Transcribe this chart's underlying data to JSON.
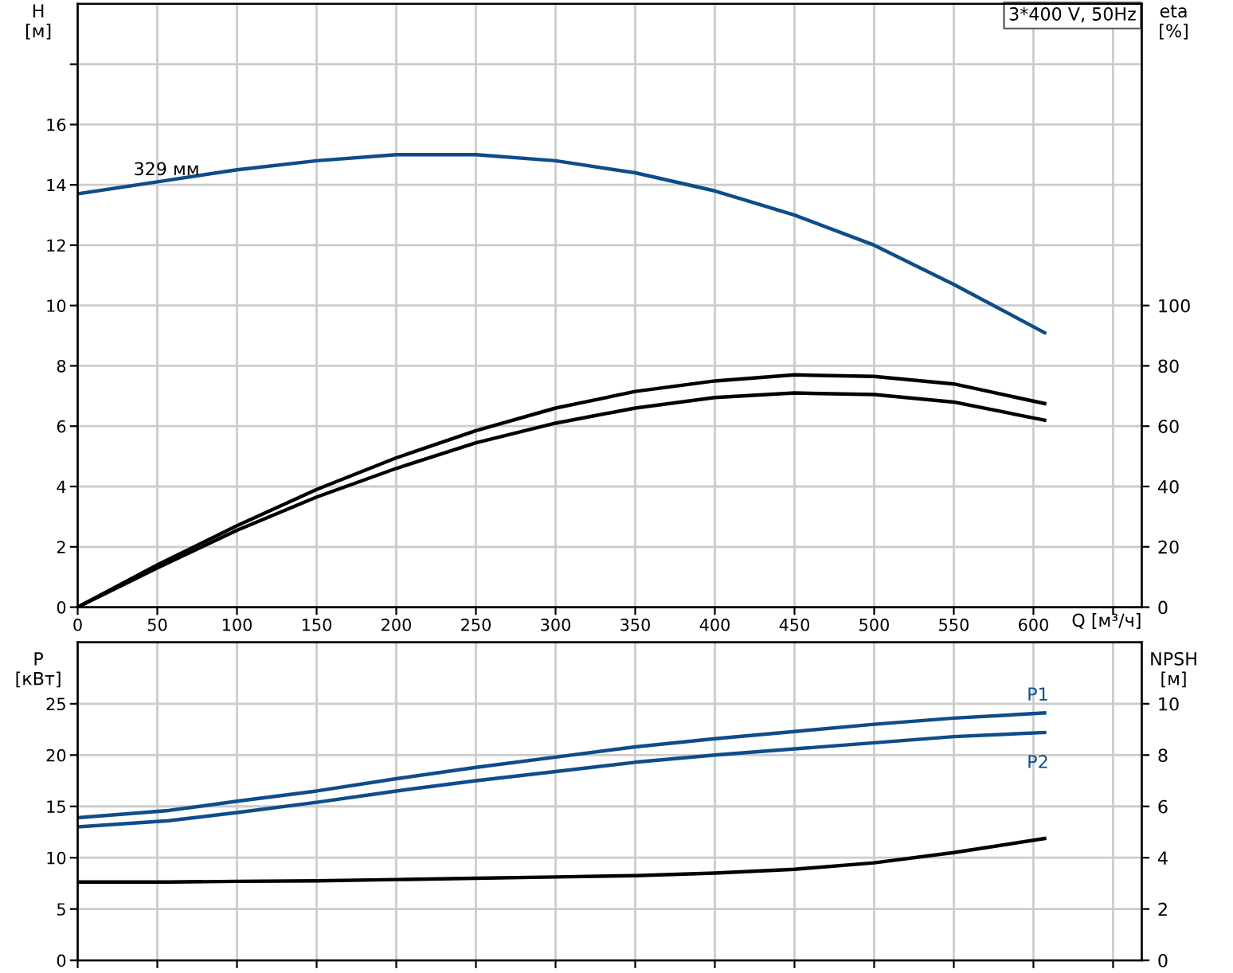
{
  "chart_data": [
    {
      "type": "line",
      "title": "3*400 V, 50Hz",
      "xlabel": "Q [м³/ч]",
      "ylabel": "H\n[м]",
      "y2label": "eta\n[%]",
      "x": [
        0,
        50,
        100,
        150,
        200,
        250,
        300,
        350,
        400,
        450,
        500,
        550,
        607
      ],
      "xlim": [
        0,
        668
      ],
      "xticks": [
        0,
        50,
        100,
        150,
        200,
        250,
        300,
        350,
        400,
        450,
        500,
        550,
        600,
        {
          "value": 650,
          "label": null
        }
      ],
      "ylim": [
        0,
        20
      ],
      "yticks": [
        0,
        2,
        4,
        6,
        8,
        10,
        12,
        14,
        16,
        {
          "value": 18,
          "label": null
        }
      ],
      "y2lim": [
        0,
        200
      ],
      "y2ticks": [
        0,
        20,
        40,
        60,
        80,
        100
      ],
      "grid": true,
      "legend": false,
      "annotations": [
        {
          "text": "329 мм",
          "x": 35,
          "y": 14.2
        }
      ],
      "series": [
        {
          "color": "#0e4c8a",
          "values": [
            13.7,
            14.1,
            14.5,
            14.8,
            15.0,
            15.0,
            14.8,
            14.4,
            13.8,
            13.0,
            12.0,
            10.7,
            9.1
          ]
        },
        {
          "color": "#000000",
          "axis": "y2",
          "values": [
            0,
            14,
            27,
            39,
            49.5,
            58.5,
            66,
            71.5,
            75,
            77,
            76.5,
            74,
            67.5
          ]
        },
        {
          "color": "#000000",
          "axis": "y2",
          "values": [
            0,
            13,
            25.5,
            36.5,
            46,
            54.5,
            61,
            66,
            69.5,
            71,
            70.5,
            68,
            62
          ]
        }
      ]
    },
    {
      "type": "line",
      "ylabel": "P\n[кВт]",
      "y2label": "NPSH\n[м]",
      "x": [
        0,
        57,
        100,
        150,
        200,
        250,
        300,
        350,
        400,
        450,
        500,
        550,
        607
      ],
      "xlim": [
        0,
        668
      ],
      "xticks": [
        0,
        50,
        100,
        150,
        200,
        250,
        300,
        350,
        400,
        450,
        500,
        550,
        600,
        650
      ],
      "ylim": [
        0,
        31
      ],
      "yticks": [
        0,
        5,
        10,
        15,
        20,
        25
      ],
      "y2lim": [
        0,
        12.4
      ],
      "y2ticks": [
        0,
        2,
        4,
        6,
        8,
        10
      ],
      "tick_labels": "y",
      "grid": true,
      "legend": false,
      "series": [
        {
          "name": "P1",
          "color": "#0e4c8a",
          "values": [
            13.9,
            14.6,
            15.5,
            16.5,
            17.7,
            18.8,
            19.8,
            20.8,
            21.6,
            22.3,
            23.0,
            23.6,
            24.1
          ]
        },
        {
          "name": "P2",
          "color": "#0e4c8a",
          "values": [
            13.0,
            13.6,
            14.4,
            15.4,
            16.5,
            17.5,
            18.4,
            19.3,
            20.0,
            20.6,
            21.2,
            21.8,
            22.2
          ]
        },
        {
          "color": "#000000",
          "axis": "y2",
          "values": [
            3.05,
            3.05,
            3.08,
            3.1,
            3.15,
            3.2,
            3.25,
            3.3,
            3.4,
            3.55,
            3.8,
            4.2,
            4.75
          ]
        }
      ]
    }
  ]
}
